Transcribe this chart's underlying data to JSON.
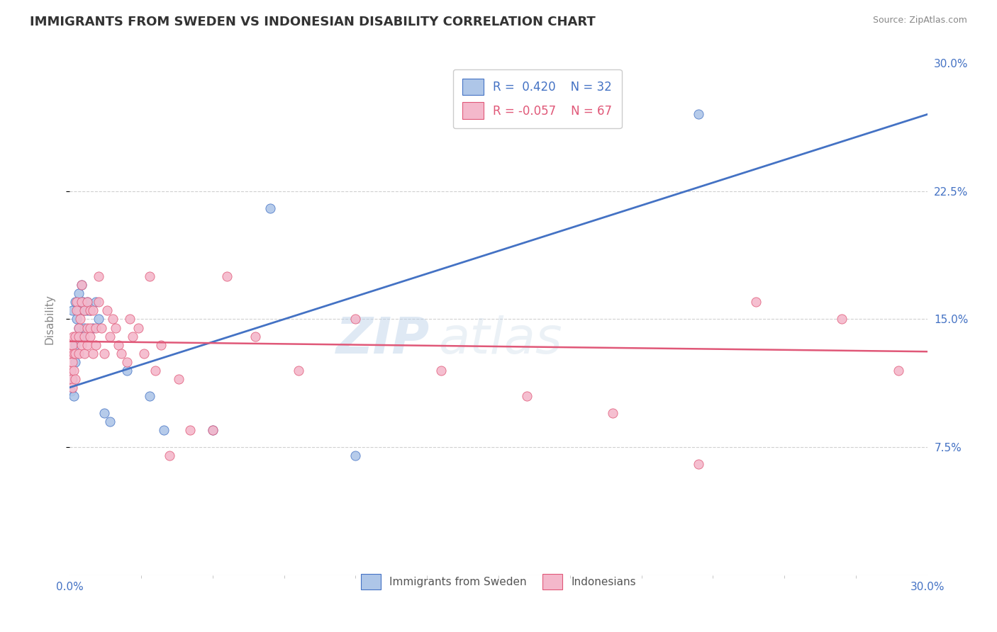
{
  "title": "IMMIGRANTS FROM SWEDEN VS INDONESIAN DISABILITY CORRELATION CHART",
  "source": "Source: ZipAtlas.com",
  "ylabel": "Disability",
  "xlim": [
    0.0,
    0.3
  ],
  "ylim": [
    0.0,
    0.3
  ],
  "yright_ticks": [
    0.075,
    0.15,
    0.225,
    0.3
  ],
  "yright_labels": [
    "7.5%",
    "15.0%",
    "22.5%",
    "30.0%"
  ],
  "background_color": "#ffffff",
  "grid_color": "#d0d0d0",
  "sweden_color": "#aec6e8",
  "indonesia_color": "#f4b8cb",
  "sweden_line_color": "#4472c4",
  "indonesia_line_color": "#e05878",
  "legend_r_sweden": " 0.420",
  "legend_n_sweden": "32",
  "legend_r_indonesia": "-0.057",
  "legend_n_indonesia": "67",
  "watermark": "ZIPatlas",
  "sweden_points": [
    [
      0.0005,
      0.108
    ],
    [
      0.001,
      0.115
    ],
    [
      0.001,
      0.155
    ],
    [
      0.0015,
      0.105
    ],
    [
      0.002,
      0.125
    ],
    [
      0.002,
      0.135
    ],
    [
      0.002,
      0.16
    ],
    [
      0.0025,
      0.15
    ],
    [
      0.003,
      0.165
    ],
    [
      0.003,
      0.145
    ],
    [
      0.003,
      0.155
    ],
    [
      0.004,
      0.17
    ],
    [
      0.004,
      0.14
    ],
    [
      0.0045,
      0.16
    ],
    [
      0.005,
      0.155
    ],
    [
      0.005,
      0.145
    ],
    [
      0.006,
      0.16
    ],
    [
      0.006,
      0.155
    ],
    [
      0.007,
      0.155
    ],
    [
      0.008,
      0.145
    ],
    [
      0.009,
      0.16
    ],
    [
      0.01,
      0.15
    ],
    [
      0.012,
      0.095
    ],
    [
      0.014,
      0.09
    ],
    [
      0.02,
      0.12
    ],
    [
      0.028,
      0.105
    ],
    [
      0.033,
      0.085
    ],
    [
      0.05,
      0.085
    ],
    [
      0.07,
      0.215
    ],
    [
      0.1,
      0.07
    ],
    [
      0.15,
      0.28
    ],
    [
      0.22,
      0.27
    ]
  ],
  "indonesia_points": [
    [
      0.0003,
      0.12
    ],
    [
      0.0005,
      0.13
    ],
    [
      0.0007,
      0.115
    ],
    [
      0.001,
      0.11
    ],
    [
      0.001,
      0.125
    ],
    [
      0.001,
      0.135
    ],
    [
      0.0012,
      0.14
    ],
    [
      0.0015,
      0.12
    ],
    [
      0.0015,
      0.13
    ],
    [
      0.002,
      0.115
    ],
    [
      0.002,
      0.13
    ],
    [
      0.002,
      0.14
    ],
    [
      0.0025,
      0.16
    ],
    [
      0.0025,
      0.155
    ],
    [
      0.003,
      0.13
    ],
    [
      0.003,
      0.145
    ],
    [
      0.003,
      0.14
    ],
    [
      0.0035,
      0.15
    ],
    [
      0.004,
      0.16
    ],
    [
      0.004,
      0.135
    ],
    [
      0.004,
      0.17
    ],
    [
      0.005,
      0.155
    ],
    [
      0.005,
      0.14
    ],
    [
      0.005,
      0.13
    ],
    [
      0.006,
      0.145
    ],
    [
      0.006,
      0.135
    ],
    [
      0.006,
      0.16
    ],
    [
      0.007,
      0.145
    ],
    [
      0.007,
      0.155
    ],
    [
      0.007,
      0.14
    ],
    [
      0.008,
      0.155
    ],
    [
      0.008,
      0.13
    ],
    [
      0.009,
      0.145
    ],
    [
      0.009,
      0.135
    ],
    [
      0.01,
      0.175
    ],
    [
      0.01,
      0.16
    ],
    [
      0.011,
      0.145
    ],
    [
      0.012,
      0.13
    ],
    [
      0.013,
      0.155
    ],
    [
      0.014,
      0.14
    ],
    [
      0.015,
      0.15
    ],
    [
      0.016,
      0.145
    ],
    [
      0.017,
      0.135
    ],
    [
      0.018,
      0.13
    ],
    [
      0.02,
      0.125
    ],
    [
      0.021,
      0.15
    ],
    [
      0.022,
      0.14
    ],
    [
      0.024,
      0.145
    ],
    [
      0.026,
      0.13
    ],
    [
      0.028,
      0.175
    ],
    [
      0.03,
      0.12
    ],
    [
      0.032,
      0.135
    ],
    [
      0.035,
      0.07
    ],
    [
      0.038,
      0.115
    ],
    [
      0.042,
      0.085
    ],
    [
      0.05,
      0.085
    ],
    [
      0.055,
      0.175
    ],
    [
      0.065,
      0.14
    ],
    [
      0.08,
      0.12
    ],
    [
      0.1,
      0.15
    ],
    [
      0.13,
      0.12
    ],
    [
      0.16,
      0.105
    ],
    [
      0.19,
      0.095
    ],
    [
      0.22,
      0.065
    ],
    [
      0.24,
      0.16
    ],
    [
      0.27,
      0.15
    ],
    [
      0.29,
      0.12
    ]
  ]
}
